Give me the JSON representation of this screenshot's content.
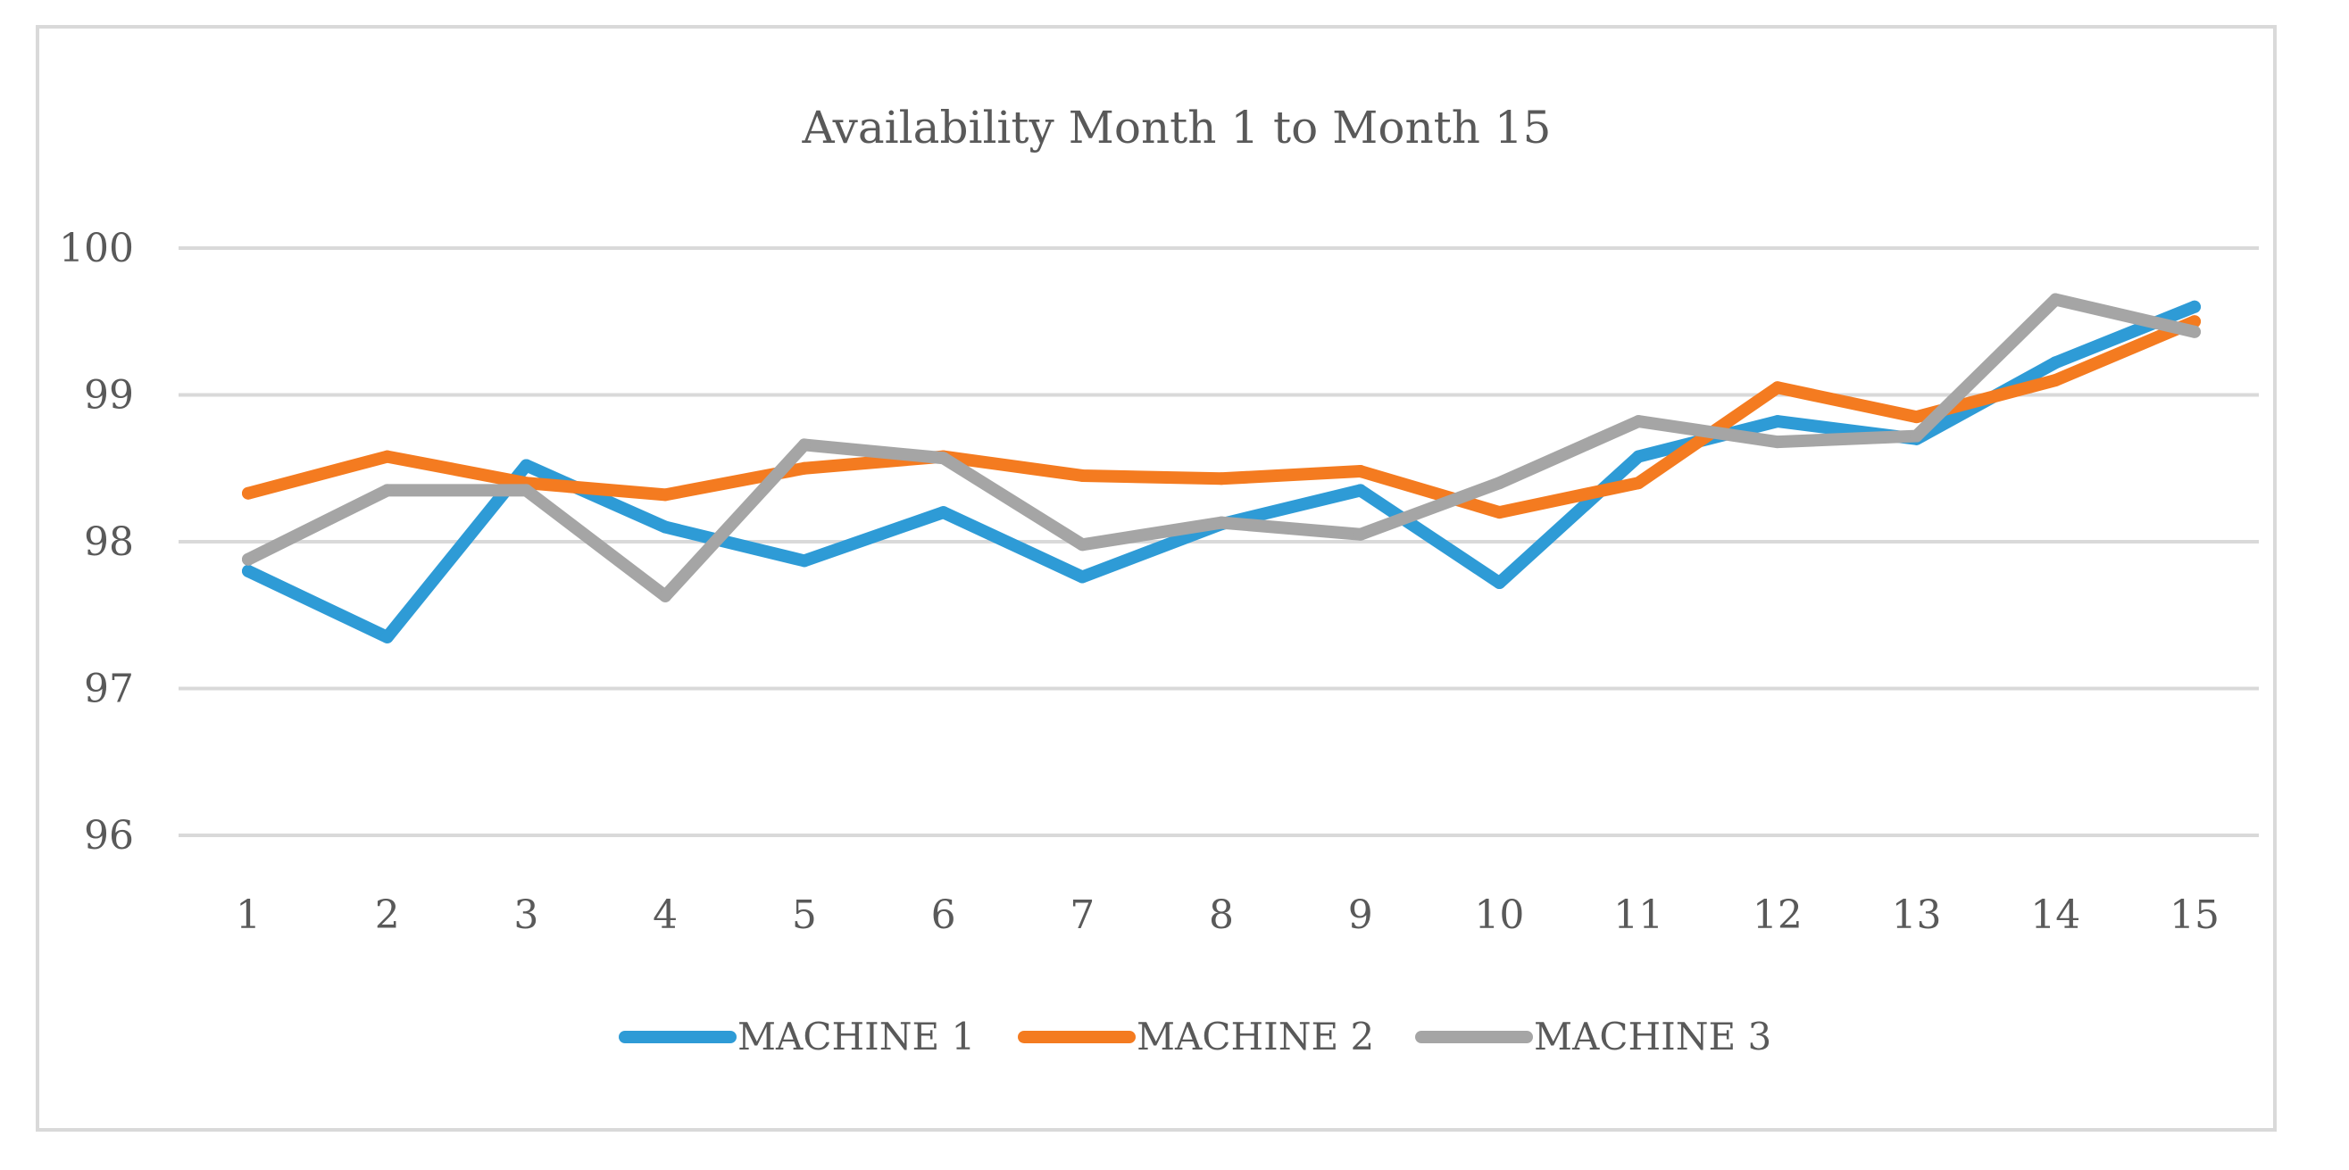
{
  "chart_data": {
    "type": "line",
    "title": "Availability Month 1 to Month 15",
    "xlabel": "",
    "ylabel": "",
    "categories": [
      "1",
      "2",
      "3",
      "4",
      "5",
      "6",
      "7",
      "8",
      "9",
      "10",
      "11",
      "12",
      "13",
      "14",
      "15"
    ],
    "ylim": [
      96,
      100
    ],
    "yticks": [
      "96",
      "97",
      "98",
      "99",
      "100"
    ],
    "grid": true,
    "legend_position": "bottom",
    "series": [
      {
        "name": "MACHINE 1",
        "color": "#2e9bd6",
        "values": [
          97.8,
          97.35,
          98.52,
          98.1,
          97.87,
          98.2,
          97.76,
          98.12,
          98.35,
          97.72,
          98.58,
          98.82,
          98.7,
          99.22,
          99.6
        ]
      },
      {
        "name": "MACHINE 2",
        "color": "#f47b20",
        "values": [
          98.33,
          98.58,
          98.4,
          98.32,
          98.5,
          98.58,
          98.45,
          98.43,
          98.48,
          98.2,
          98.4,
          99.05,
          98.85,
          99.1,
          99.5
        ]
      },
      {
        "name": "MACHINE 3",
        "color": "#a5a5a5",
        "values": [
          97.88,
          98.35,
          98.35,
          97.63,
          98.66,
          98.57,
          97.98,
          98.13,
          98.05,
          98.4,
          98.82,
          98.68,
          98.72,
          99.65,
          99.43
        ]
      }
    ]
  }
}
